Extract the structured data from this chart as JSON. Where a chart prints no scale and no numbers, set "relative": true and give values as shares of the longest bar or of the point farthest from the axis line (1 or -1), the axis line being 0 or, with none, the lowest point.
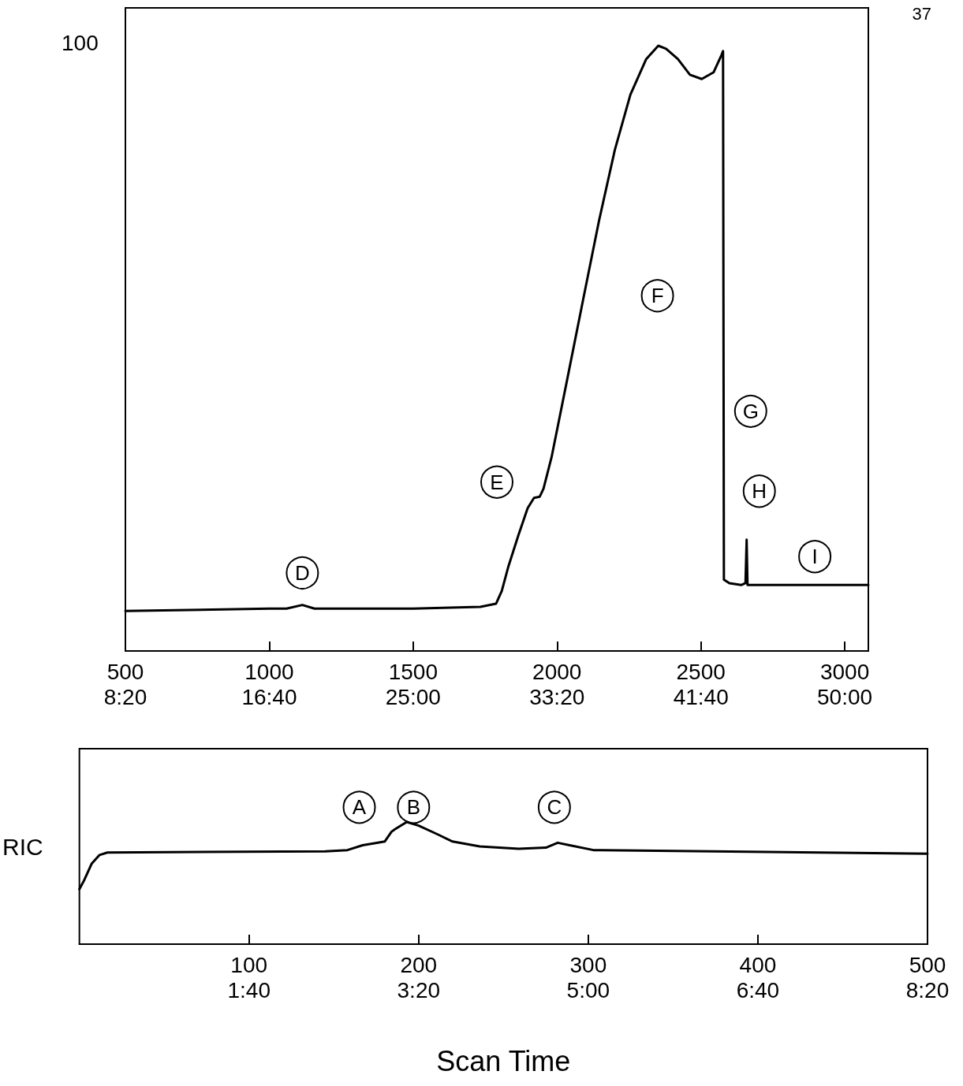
{
  "chart_data": [
    {
      "type": "line",
      "relative": true,
      "color": "#000000",
      "marker": "none",
      "line_style": "solid",
      "grid": false,
      "xlim": [
        500,
        3082
      ],
      "xticks": [
        500,
        1000,
        1500,
        2000,
        2500,
        3000
      ],
      "x2lim": [
        500,
        3082
      ],
      "x2ticks": [
        {
          "value": 500,
          "label": "8:20"
        },
        {
          "value": 1000,
          "label": "16:40"
        },
        {
          "value": 1500,
          "label": "25:00"
        },
        {
          "value": 2000,
          "label": "33:20"
        },
        {
          "value": 2500,
          "label": "41:40"
        },
        {
          "value": 3000,
          "label": "50:00"
        }
      ],
      "x": [
        500,
        1000,
        1060,
        1115,
        1157,
        1500,
        1734,
        1788,
        1808,
        1830,
        1865,
        1898,
        1920,
        1940,
        1953,
        1981,
        2036,
        2091,
        2146,
        2201,
        2255,
        2310,
        2352,
        2379,
        2420,
        2462,
        2503,
        2544,
        2571,
        2577,
        2580,
        2599,
        2640,
        2655,
        2659,
        2662,
        3082
      ],
      "values": [
        0.066,
        0.07,
        0.07,
        0.076,
        0.07,
        0.07,
        0.073,
        0.078,
        0.099,
        0.138,
        0.19,
        0.236,
        0.253,
        0.255,
        0.268,
        0.32,
        0.45,
        0.581,
        0.711,
        0.828,
        0.919,
        0.978,
        1,
        0.995,
        0.978,
        0.952,
        0.945,
        0.956,
        0.984,
        0.991,
        0.118,
        0.112,
        0.109,
        0.112,
        0.184,
        0.109,
        0.109
      ],
      "annotations": [
        "100",
        "37",
        {
          "text": "D",
          "x": 1115,
          "y": 0.129
        },
        {
          "text": "E",
          "x": 1791,
          "y": 0.279
        },
        {
          "text": "F",
          "x": 2349,
          "y": 0.587
        },
        {
          "text": "G",
          "x": 2673,
          "y": 0.396
        },
        {
          "text": "H",
          "x": 2703,
          "y": 0.264
        },
        {
          "text": "I",
          "x": 2896,
          "y": 0.156
        }
      ]
    },
    {
      "type": "line",
      "relative": true,
      "color": "#000000",
      "marker": "none",
      "line_style": "solid",
      "grid": false,
      "ylabel": "RIC",
      "xlabel": "Scan Time",
      "xlim": [
        0,
        500
      ],
      "xticks": [
        100,
        200,
        300,
        400,
        500
      ],
      "x2lim": [
        0,
        500
      ],
      "x2ticks": [
        {
          "value": 100,
          "label": "1:40"
        },
        {
          "value": 200,
          "label": "3:20"
        },
        {
          "value": 300,
          "label": "5:00"
        },
        {
          "value": 400,
          "label": "6:40"
        },
        {
          "value": 500,
          "label": "8:20"
        }
      ],
      "x": [
        0,
        2.7,
        7.3,
        11.9,
        16.5,
        145,
        158,
        167,
        176,
        180,
        184,
        186,
        193,
        200,
        211,
        220,
        236,
        259,
        275,
        282,
        289,
        303,
        373,
        500
      ],
      "values": [
        0.45,
        0.52,
        0.66,
        0.73,
        0.75,
        0.76,
        0.77,
        0.81,
        0.83,
        0.84,
        0.92,
        0.94,
        1.0,
        0.97,
        0.9,
        0.84,
        0.8,
        0.78,
        0.79,
        0.83,
        0.81,
        0.77,
        0.76,
        0.74
      ],
      "annotations": [
        {
          "text": "A",
          "x": 165,
          "y": 1.12
        },
        {
          "text": "B",
          "x": 197,
          "y": 1.12
        },
        {
          "text": "C",
          "x": 280,
          "y": 1.12
        }
      ]
    }
  ]
}
